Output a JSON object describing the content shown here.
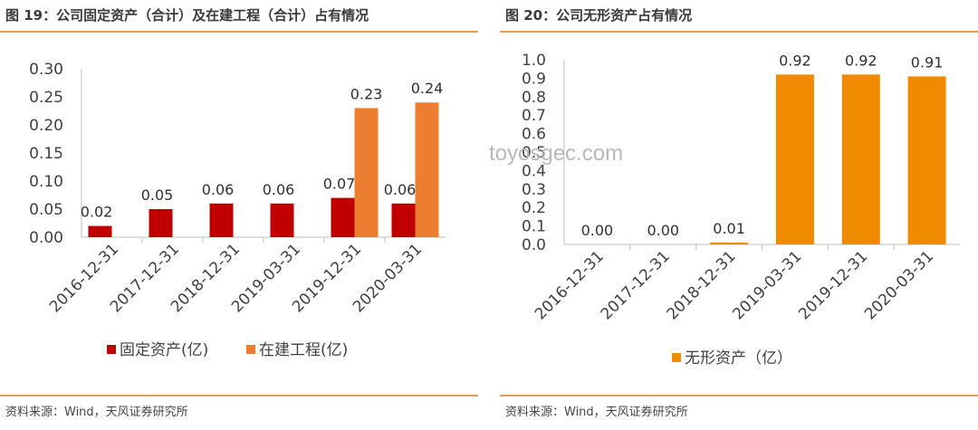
{
  "watermark": "toyosgec.com",
  "left": {
    "title": "图 19：公司固定资产（合计）及在建工程（合计）占有情况",
    "source": "资料来源：Wind，天风证券研究所"
  },
  "right": {
    "title": "图 20：公司无形资产占有情况",
    "source": "资料来源：Wind，天风证券研究所"
  },
  "chart_data": [
    {
      "type": "bar",
      "title": "图 19：公司固定资产（合计）及在建工程（合计）占有情况",
      "categories": [
        "2016-12-31",
        "2017-12-31",
        "2018-12-31",
        "2019-03-31",
        "2019-12-31",
        "2020-03-31"
      ],
      "series": [
        {
          "name": "固定资产(亿)",
          "color": "#c00000",
          "values": [
            0.02,
            0.05,
            0.06,
            0.06,
            0.07,
            0.06
          ]
        },
        {
          "name": "在建工程(亿)",
          "color": "#ed7d31",
          "values": [
            null,
            null,
            null,
            null,
            0.23,
            0.24
          ]
        }
      ],
      "data_labels": [
        [
          "0.02",
          "0.05",
          "0.06",
          "0.06",
          "0.07",
          "0.06"
        ],
        [
          null,
          null,
          null,
          null,
          "0.23",
          "0.24"
        ]
      ],
      "ylim": [
        0,
        0.3
      ],
      "yticks": [
        0.0,
        0.05,
        0.1,
        0.15,
        0.2,
        0.25,
        0.3
      ],
      "ytick_labels": [
        "0.00",
        "0.05",
        "0.10",
        "0.15",
        "0.20",
        "0.25",
        "0.30"
      ],
      "xlabel": "",
      "ylabel": "",
      "grid": false,
      "legend": "bottom"
    },
    {
      "type": "bar",
      "title": "图 20：公司无形资产占有情况",
      "categories": [
        "2016-12-31",
        "2017-12-31",
        "2018-12-31",
        "2019-03-31",
        "2019-12-31",
        "2020-03-31"
      ],
      "series": [
        {
          "name": "无形资产（亿）",
          "color": "#f08a00",
          "values": [
            0.0,
            0.0,
            0.01,
            0.92,
            0.92,
            0.91
          ]
        }
      ],
      "data_labels": [
        [
          "0.00",
          "0.00",
          "0.01",
          "0.92",
          "0.92",
          "0.91"
        ]
      ],
      "ylim": [
        0,
        1.0
      ],
      "yticks": [
        0.0,
        0.1,
        0.2,
        0.3,
        0.4,
        0.5,
        0.6,
        0.7,
        0.8,
        0.9,
        1.0
      ],
      "ytick_labels": [
        "0.0",
        "0.1",
        "0.2",
        "0.3",
        "0.4",
        "0.5",
        "0.6",
        "0.7",
        "0.8",
        "0.9",
        "1.0"
      ],
      "xlabel": "",
      "ylabel": "",
      "grid": false,
      "legend": "bottom"
    }
  ]
}
